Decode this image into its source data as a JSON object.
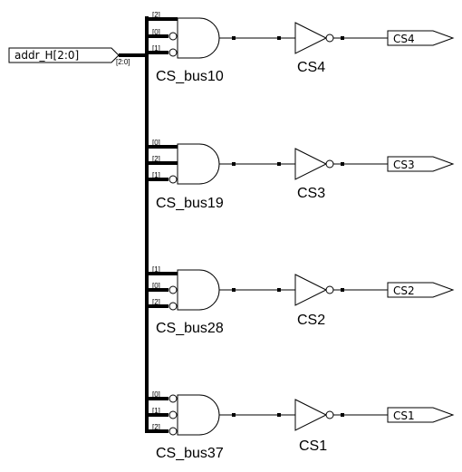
{
  "input_port": {
    "label": "addr_H[2:0]",
    "bus_tag": "[2:0]"
  },
  "rows": [
    {
      "and_label": "CS_bus10",
      "inv_label": "CS4",
      "out_port": "CS4",
      "bits": [
        "[2]",
        "[0]",
        "[1]"
      ],
      "inverted": [
        false,
        true,
        true
      ]
    },
    {
      "and_label": "CS_bus19",
      "inv_label": "CS3",
      "out_port": "CS3",
      "bits": [
        "[0]",
        "[2]",
        "[1]"
      ],
      "inverted": [
        false,
        false,
        true
      ]
    },
    {
      "and_label": "CS_bus28",
      "inv_label": "CS2",
      "out_port": "CS2",
      "bits": [
        "[1]",
        "[0]",
        "[2]"
      ],
      "inverted": [
        false,
        true,
        true
      ]
    },
    {
      "and_label": "CS_bus37",
      "inv_label": "CS1",
      "out_port": "CS1",
      "bits": [
        "[0]",
        "[1]",
        "[2]"
      ],
      "inverted": [
        true,
        true,
        true
      ]
    }
  ],
  "colors": {
    "line": "#000000",
    "background": "#ffffff"
  }
}
